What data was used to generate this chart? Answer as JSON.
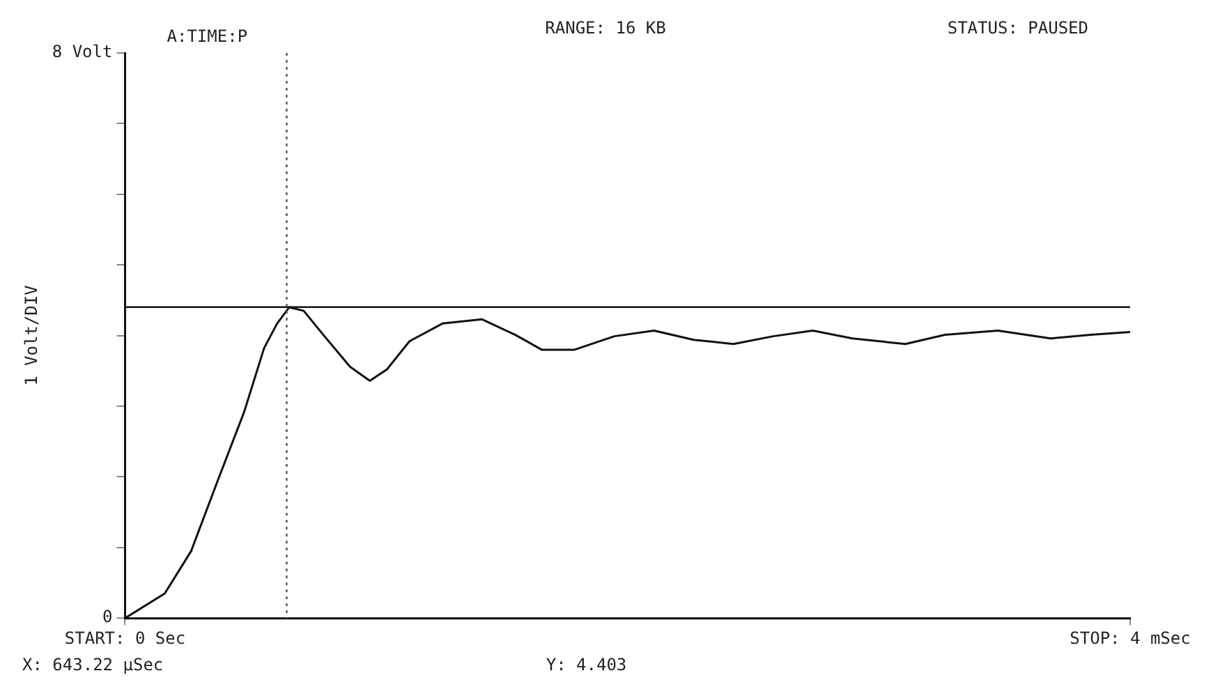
{
  "chart_data": {
    "type": "line",
    "ylabel": "1 Volt/DIV",
    "annotations": [
      "A:TIME:P",
      "RANGE: 16 KB",
      "STATUS: PAUSED",
      "X: 643.22 µSec",
      "Y: 4.403"
    ],
    "x": [
      0,
      0.158,
      0.263,
      0.368,
      0.474,
      0.553,
      0.605,
      0.653,
      0.711,
      0.789,
      0.895,
      0.974,
      1.042,
      1.132,
      1.263,
      1.421,
      1.553,
      1.658,
      1.789,
      1.947,
      2.105,
      2.263,
      2.421,
      2.579,
      2.737,
      2.895,
      3.105,
      3.263,
      3.474,
      3.684,
      3.842,
      4
    ],
    "series": [
      {
        "color": "#111111",
        "values": [
          0,
          0.35,
          0.95,
          1.94,
          2.92,
          3.82,
          4.17,
          4.4,
          4.35,
          4.01,
          3.56,
          3.36,
          3.52,
          3.92,
          4.17,
          4.23,
          4.01,
          3.8,
          3.8,
          3.99,
          4.07,
          3.94,
          3.88,
          3.99,
          4.07,
          3.96,
          3.88,
          4.01,
          4.07,
          3.96,
          4.01,
          4.05
        ]
      }
    ],
    "xlim": [
      0,
      4
    ],
    "xticks": [
      {
        "value": 0,
        "label": "START: 0 Sec"
      },
      {
        "value": 4,
        "label": "STOP: 4 mSec"
      }
    ],
    "ylim": [
      0,
      8
    ],
    "yticks": [
      {
        "value": 0,
        "label": "0"
      },
      {
        "value": 1,
        "label": null
      },
      {
        "value": 2,
        "label": null
      },
      {
        "value": 3,
        "label": null
      },
      {
        "value": 4,
        "label": null
      },
      {
        "value": 5,
        "label": null
      },
      {
        "value": 6,
        "label": null
      },
      {
        "value": 7,
        "label": null
      },
      {
        "value": 8,
        "label": "8 Volt"
      }
    ],
    "ref_lines": [
      {
        "axis": "y",
        "value": 4.403,
        "color": "#111111",
        "line_style": "solid"
      },
      {
        "axis": "x",
        "value": 0.64322,
        "color": "#555555",
        "line_style": "dotted"
      }
    ],
    "grid": false,
    "legend": false,
    "marker": "none",
    "line_style": "solid"
  }
}
